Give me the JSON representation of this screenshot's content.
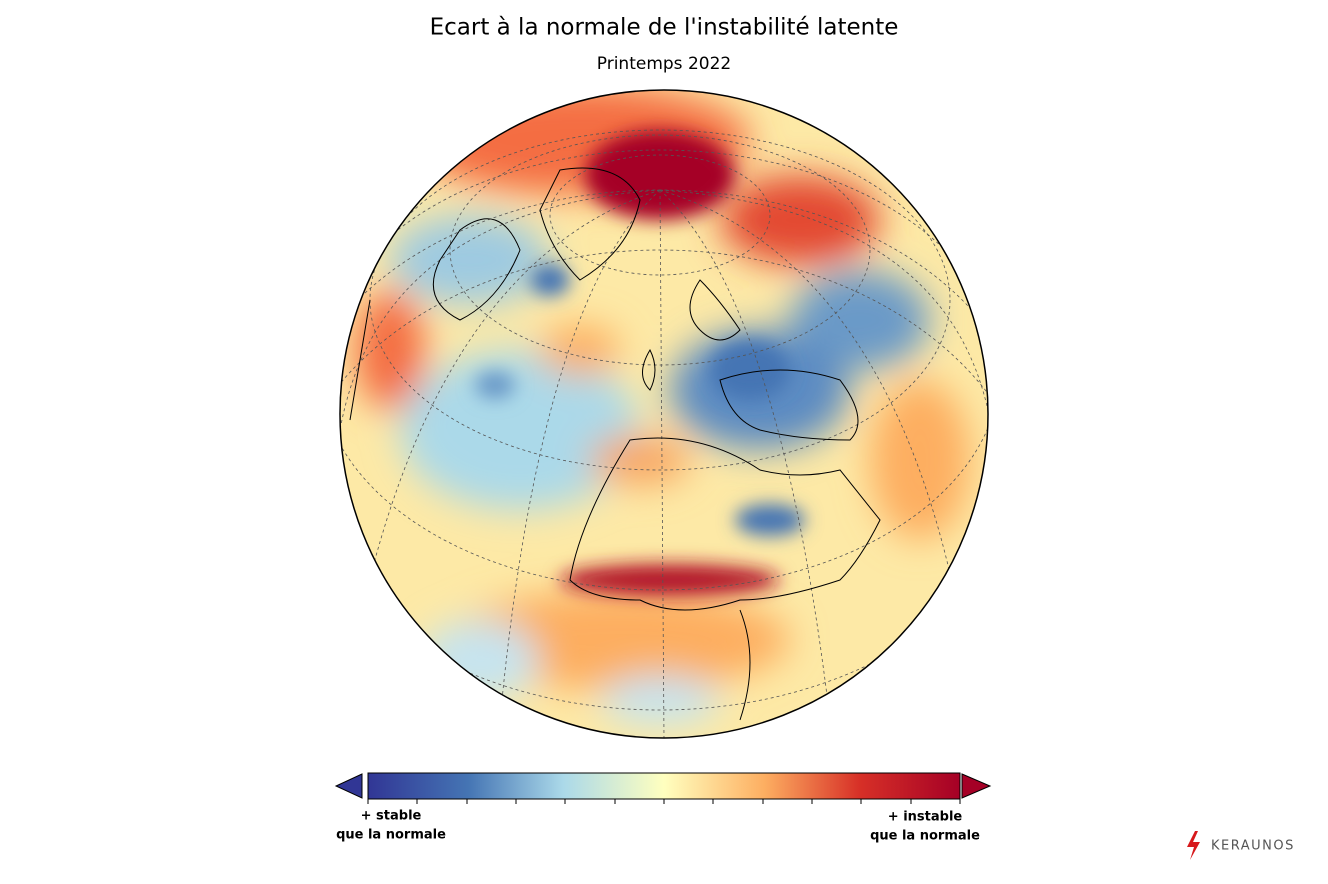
{
  "header": {
    "title": "Ecart à la normale de l'instabilité latente",
    "subtitle": "Printemps 2022"
  },
  "colorbar": {
    "left_label": [
      "+ stable",
      "que la normale"
    ],
    "right_label": [
      "+ instable",
      "que la normale"
    ]
  },
  "logo": "KERAUNOS"
}
